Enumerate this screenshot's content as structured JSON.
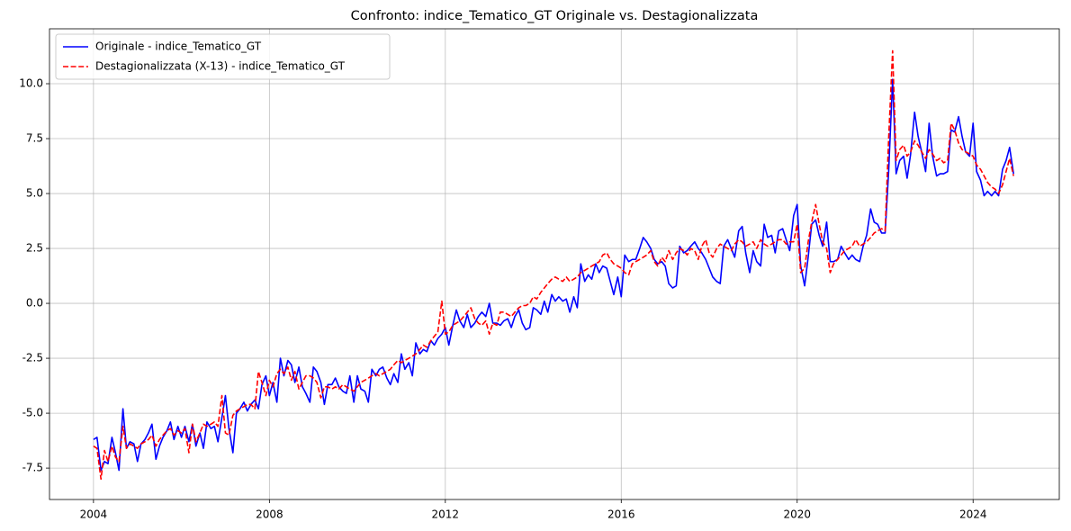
{
  "chart_data": {
    "type": "line",
    "title": "Confronto: indice_Tematico_GT Originale vs. Destagionalizzata",
    "x": [
      2004,
      2004.08,
      2004.17,
      2004.25,
      2004.33,
      2004.42,
      2004.5,
      2004.58,
      2004.67,
      2004.75,
      2004.83,
      2004.92,
      2005,
      2005.08,
      2005.17,
      2005.25,
      2005.33,
      2005.42,
      2005.5,
      2005.58,
      2005.67,
      2005.75,
      2005.83,
      2005.92,
      2006,
      2006.08,
      2006.17,
      2006.25,
      2006.33,
      2006.42,
      2006.5,
      2006.58,
      2006.67,
      2006.75,
      2006.83,
      2006.92,
      2007,
      2007.08,
      2007.17,
      2007.25,
      2007.33,
      2007.42,
      2007.5,
      2007.58,
      2007.67,
      2007.75,
      2007.83,
      2007.92,
      2008,
      2008.08,
      2008.17,
      2008.25,
      2008.33,
      2008.42,
      2008.5,
      2008.58,
      2008.67,
      2008.75,
      2008.83,
      2008.92,
      2009,
      2009.08,
      2009.17,
      2009.25,
      2009.33,
      2009.42,
      2009.5,
      2009.58,
      2009.67,
      2009.75,
      2009.83,
      2009.92,
      2010,
      2010.08,
      2010.17,
      2010.25,
      2010.33,
      2010.42,
      2010.5,
      2010.58,
      2010.67,
      2010.75,
      2010.83,
      2010.92,
      2011,
      2011.08,
      2011.17,
      2011.25,
      2011.33,
      2011.42,
      2011.5,
      2011.58,
      2011.67,
      2011.75,
      2011.83,
      2011.92,
      2012,
      2012.08,
      2012.17,
      2012.25,
      2012.33,
      2012.42,
      2012.5,
      2012.58,
      2012.67,
      2012.75,
      2012.83,
      2012.92,
      2013,
      2013.08,
      2013.17,
      2013.25,
      2013.33,
      2013.42,
      2013.5,
      2013.58,
      2013.67,
      2013.75,
      2013.83,
      2013.92,
      2014,
      2014.08,
      2014.17,
      2014.25,
      2014.33,
      2014.42,
      2014.5,
      2014.58,
      2014.67,
      2014.75,
      2014.83,
      2014.92,
      2015,
      2015.08,
      2015.17,
      2015.25,
      2015.33,
      2015.42,
      2015.5,
      2015.58,
      2015.67,
      2015.75,
      2015.83,
      2015.92,
      2016,
      2016.08,
      2016.17,
      2016.25,
      2016.33,
      2016.42,
      2016.5,
      2016.58,
      2016.67,
      2016.75,
      2016.83,
      2016.92,
      2017,
      2017.08,
      2017.17,
      2017.25,
      2017.33,
      2017.42,
      2017.5,
      2017.58,
      2017.67,
      2017.75,
      2017.83,
      2017.92,
      2018,
      2018.08,
      2018.17,
      2018.25,
      2018.33,
      2018.42,
      2018.5,
      2018.58,
      2018.67,
      2018.75,
      2018.83,
      2018.92,
      2019,
      2019.08,
      2019.17,
      2019.25,
      2019.33,
      2019.42,
      2019.5,
      2019.58,
      2019.67,
      2019.75,
      2019.83,
      2019.92,
      2020,
      2020.08,
      2020.17,
      2020.25,
      2020.33,
      2020.42,
      2020.5,
      2020.58,
      2020.67,
      2020.75,
      2020.83,
      2020.92,
      2021,
      2021.08,
      2021.17,
      2021.25,
      2021.33,
      2021.42,
      2021.5,
      2021.58,
      2021.67,
      2021.75,
      2021.83,
      2021.92,
      2022,
      2022.08,
      2022.17,
      2022.25,
      2022.33,
      2022.42,
      2022.5,
      2022.58,
      2022.67,
      2022.75,
      2022.83,
      2022.92,
      2023,
      2023.08,
      2023.17,
      2023.25,
      2023.33,
      2023.42,
      2023.5,
      2023.58,
      2023.67,
      2023.75,
      2023.83,
      2023.92,
      2024,
      2024.08,
      2024.17,
      2024.25,
      2024.33,
      2024.42,
      2024.5,
      2024.58,
      2024.67,
      2024.75,
      2024.83,
      2024.92
    ],
    "series": [
      {
        "name": "Originale - indice_Tematico_GT",
        "color": "#0000ff",
        "dash": "solid",
        "values": [
          -6.2,
          -6.1,
          -7.6,
          -7.2,
          -7.3,
          -6.1,
          -6.8,
          -7.6,
          -4.8,
          -6.6,
          -6.3,
          -6.4,
          -7.2,
          -6.4,
          -6.2,
          -5.9,
          -5.5,
          -7.1,
          -6.5,
          -6.1,
          -5.8,
          -5.4,
          -6.2,
          -5.6,
          -6.1,
          -5.6,
          -6.3,
          -5.5,
          -6.5,
          -5.9,
          -6.6,
          -5.4,
          -5.7,
          -5.6,
          -6.3,
          -5.2,
          -4.2,
          -5.7,
          -6.8,
          -5.0,
          -4.8,
          -4.5,
          -4.9,
          -4.6,
          -4.4,
          -4.8,
          -3.7,
          -3.3,
          -4.2,
          -3.6,
          -4.5,
          -2.5,
          -3.3,
          -2.6,
          -2.8,
          -3.6,
          -2.9,
          -3.8,
          -4.1,
          -4.5,
          -2.9,
          -3.1,
          -3.6,
          -4.6,
          -3.7,
          -3.7,
          -3.4,
          -3.8,
          -4.0,
          -4.1,
          -3.3,
          -4.5,
          -3.3,
          -3.9,
          -4.0,
          -4.5,
          -3.0,
          -3.3,
          -3.0,
          -2.9,
          -3.4,
          -3.7,
          -3.2,
          -3.6,
          -2.3,
          -3.0,
          -2.7,
          -3.3,
          -1.8,
          -2.3,
          -2.1,
          -2.2,
          -1.7,
          -1.9,
          -1.6,
          -1.4,
          -1.1,
          -1.9,
          -1.0,
          -0.3,
          -0.8,
          -1.1,
          -0.5,
          -1.1,
          -0.9,
          -0.6,
          -0.4,
          -0.6,
          0.0,
          -0.9,
          -0.9,
          -1.0,
          -0.8,
          -0.7,
          -1.1,
          -0.6,
          -0.3,
          -0.9,
          -1.2,
          -1.1,
          -0.2,
          -0.3,
          -0.5,
          0.1,
          -0.4,
          0.4,
          0.1,
          0.3,
          0.1,
          0.2,
          -0.4,
          0.3,
          -0.2,
          1.8,
          1.0,
          1.3,
          1.1,
          1.8,
          1.4,
          1.7,
          1.6,
          1.0,
          0.4,
          1.2,
          0.3,
          2.2,
          1.9,
          2.0,
          2.0,
          2.5,
          3.0,
          2.8,
          2.5,
          2.0,
          1.8,
          1.9,
          1.7,
          0.9,
          0.7,
          0.8,
          2.6,
          2.3,
          2.4,
          2.6,
          2.8,
          2.5,
          2.3,
          2.0,
          1.6,
          1.2,
          1.0,
          0.9,
          2.6,
          2.9,
          2.5,
          2.1,
          3.3,
          3.5,
          2.3,
          1.4,
          2.4,
          1.9,
          1.7,
          3.6,
          3.0,
          3.1,
          2.3,
          3.3,
          3.4,
          2.9,
          2.4,
          4.0,
          4.5,
          1.7,
          0.8,
          2.1,
          3.6,
          3.8,
          3.1,
          2.6,
          3.7,
          1.9,
          1.9,
          2.0,
          2.6,
          2.3,
          2.0,
          2.2,
          2.0,
          1.9,
          2.6,
          3.1,
          4.3,
          3.7,
          3.6,
          3.2,
          3.2,
          6.0,
          10.2,
          5.9,
          6.5,
          6.7,
          5.7,
          6.8,
          8.7,
          7.6,
          6.9,
          6.0,
          8.2,
          6.7,
          5.8,
          5.9,
          5.9,
          6.0,
          7.9,
          7.8,
          8.5,
          7.6,
          6.9,
          6.7,
          8.2,
          6.0,
          5.6,
          4.9,
          5.1,
          4.9,
          5.1,
          4.9,
          6.1,
          6.5,
          7.1,
          5.9
        ]
      },
      {
        "name": "Destagionalizzata (X-13) - indice_Tematico_GT",
        "color": "#ff0000",
        "dash": "dashed",
        "values": [
          -6.5,
          -6.6,
          -8.0,
          -6.7,
          -7.2,
          -6.5,
          -7.0,
          -7.2,
          -5.6,
          -6.6,
          -6.4,
          -6.5,
          -6.6,
          -6.4,
          -6.3,
          -6.2,
          -6.0,
          -6.5,
          -6.2,
          -6.0,
          -5.8,
          -5.7,
          -6.0,
          -5.8,
          -5.9,
          -5.7,
          -6.8,
          -5.5,
          -6.3,
          -5.9,
          -5.5,
          -5.6,
          -5.5,
          -5.4,
          -5.6,
          -4.2,
          -5.9,
          -6.0,
          -5.1,
          -4.9,
          -4.8,
          -4.7,
          -4.6,
          -4.6,
          -4.8,
          -3.1,
          -3.6,
          -4.2,
          -3.5,
          -3.8,
          -3.2,
          -3.0,
          -3.2,
          -2.9,
          -3.5,
          -3.1,
          -3.9,
          -3.6,
          -3.3,
          -3.3,
          -3.4,
          -3.6,
          -4.3,
          -3.8,
          -3.8,
          -3.9,
          -3.8,
          -3.9,
          -3.7,
          -3.8,
          -3.9,
          -4.0,
          -3.8,
          -3.6,
          -3.5,
          -3.4,
          -3.3,
          -3.2,
          -3.3,
          -3.2,
          -3.1,
          -3.0,
          -2.8,
          -2.6,
          -2.7,
          -2.6,
          -2.5,
          -2.4,
          -2.3,
          -2.1,
          -1.9,
          -2.0,
          -1.7,
          -1.5,
          -1.3,
          0.1,
          -1.4,
          -1.3,
          -1.0,
          -0.9,
          -0.8,
          -0.6,
          -0.4,
          -0.2,
          -0.7,
          -0.9,
          -1.0,
          -0.8,
          -1.4,
          -0.9,
          -1.0,
          -0.4,
          -0.4,
          -0.5,
          -0.6,
          -0.4,
          -0.2,
          -0.1,
          -0.1,
          0.0,
          0.3,
          0.2,
          0.5,
          0.7,
          0.9,
          1.1,
          1.2,
          1.1,
          1.0,
          1.2,
          1.0,
          1.1,
          1.2,
          1.4,
          1.5,
          1.6,
          1.7,
          1.8,
          1.9,
          2.2,
          2.3,
          2.0,
          1.8,
          1.7,
          1.6,
          1.4,
          1.3,
          1.8,
          1.9,
          2.0,
          2.1,
          2.2,
          2.4,
          1.9,
          1.7,
          2.1,
          1.9,
          2.4,
          2.0,
          2.3,
          2.5,
          2.4,
          2.2,
          2.5,
          2.4,
          2.0,
          2.6,
          2.9,
          2.3,
          2.1,
          2.5,
          2.7,
          2.6,
          2.5,
          2.4,
          2.7,
          2.9,
          2.8,
          2.6,
          2.7,
          2.8,
          2.5,
          2.9,
          2.7,
          2.6,
          2.7,
          2.8,
          2.9,
          2.9,
          2.7,
          2.8,
          2.8,
          3.6,
          1.4,
          1.6,
          2.8,
          3.7,
          4.5,
          3.6,
          2.8,
          2.5,
          1.4,
          1.8,
          2.0,
          2.2,
          2.4,
          2.5,
          2.6,
          2.9,
          2.6,
          2.7,
          2.8,
          3.0,
          3.2,
          3.3,
          3.4,
          3.3,
          7.5,
          11.5,
          6.5,
          7.0,
          7.2,
          6.7,
          6.9,
          7.4,
          7.2,
          6.9,
          6.6,
          7.0,
          6.8,
          6.5,
          6.6,
          6.4,
          6.5,
          8.2,
          7.9,
          7.3,
          7.0,
          6.9,
          6.8,
          6.7,
          6.3,
          6.1,
          5.8,
          5.5,
          5.3,
          5.2,
          5.0,
          5.4,
          6.0,
          6.6,
          5.8
        ]
      }
    ],
    "xlim": [
      2003,
      2025.96
    ],
    "xticks": [
      2004,
      2008,
      2012,
      2016,
      2020,
      2024
    ],
    "ylim": [
      -8.93,
      12.5
    ],
    "yticks": [
      {
        "value": -7.5,
        "label": "-7.5"
      },
      {
        "value": -5,
        "label": "-5.0"
      },
      {
        "value": -2.5,
        "label": "-2.5"
      },
      {
        "value": 0,
        "label": "0.0"
      },
      {
        "value": 2.5,
        "label": "2.5"
      },
      {
        "value": 5,
        "label": "5.0"
      },
      {
        "value": 7.5,
        "label": "7.5"
      },
      {
        "value": 10,
        "label": "10.0"
      }
    ],
    "grid": true,
    "legend": "upper-left"
  }
}
